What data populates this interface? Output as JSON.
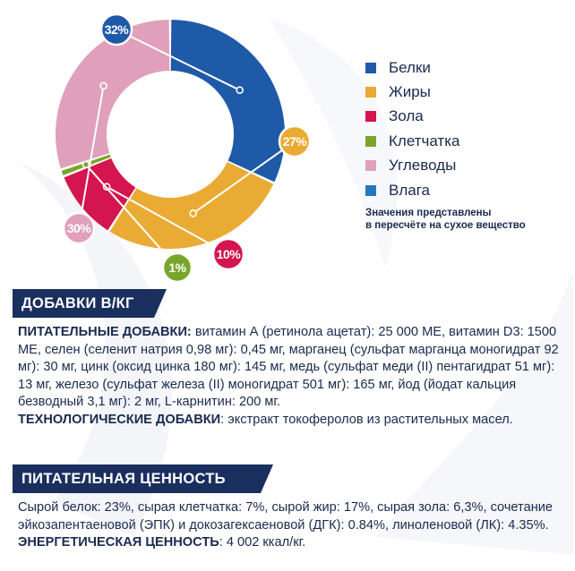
{
  "chart_data": {
    "type": "pie",
    "style": "donut",
    "categories": [
      "Белки",
      "Жиры",
      "Зола",
      "Клетчатка",
      "Углеводы",
      "Влага"
    ],
    "values": [
      32,
      27,
      10,
      1,
      30,
      0
    ],
    "labels": [
      "32%",
      "27%",
      "10%",
      "1%",
      "30%"
    ],
    "colors": [
      "#1e5aa8",
      "#e9ab33",
      "#d4154f",
      "#7aa52b",
      "#e0a0bb",
      "#2479be"
    ],
    "legend_placement": "right"
  },
  "legend": {
    "items": [
      {
        "label": "Белки",
        "color": "#1e5aa8"
      },
      {
        "label": "Жиры",
        "color": "#e9ab33"
      },
      {
        "label": "Зола",
        "color": "#d4154f"
      },
      {
        "label": "Клетчатка",
        "color": "#7aa52b"
      },
      {
        "label": "Углеводы",
        "color": "#e0a0bb"
      },
      {
        "label": "Влага",
        "color": "#2479be"
      }
    ],
    "note_line1": "Значения представлены",
    "note_line2": "в пересчёте на сухое вещество"
  },
  "additives": {
    "header": "ДОБАВКИ В/КГ",
    "nutritional_label": "ПИТАТЕЛЬНЫЕ ДОБАВКИ:",
    "nutritional_text": " витамин А (ретинола ацетат): 25 000 МЕ, витамин D3: 1500 МЕ, селен (селенит натрия 0,98 мг): 0,45 мг, марганец (сульфат марганца моногидрат 92 мг): 30 мг, цинк (оксид цинка 180 мг): 145 мг, медь (сульфат меди (II) пентагидрат 51 мг): 13 мг, железо (сульфат железа (II) моногидрат 501 мг): 165 мг, йод (йодат кальция безводный 3,1 мг): 2 мг, L-карнитин: 200 мг.",
    "tech_label": "ТЕХНОЛОГИЧЕСКИЕ ДОБАВКИ",
    "tech_text": ": экстракт токоферолов из растительных масел."
  },
  "nutrition": {
    "header": "ПИТАТЕЛЬНАЯ ЦЕННОСТЬ",
    "composition_text": "Сырой белок: 23%, сырая клетчатка: 7%, сырой жир: 17%, сырая зола: 6,3%, сочетание эйкозапентаеновой (ЭПК) и докозагексаеновой (ДГК): 0.84%, линоленовой (ЛК): 4.35%.",
    "energy_label": "ЭНЕРГЕТИЧЕСКАЯ ЦЕННОСТЬ",
    "energy_text": ": 4 002 ккал/кг."
  }
}
